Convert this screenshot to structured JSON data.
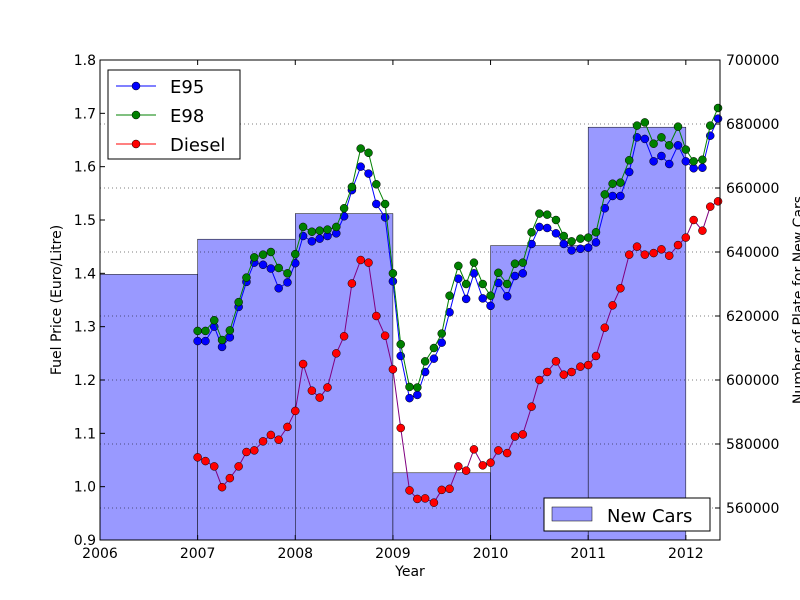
{
  "chart_data": {
    "type": "line",
    "xlabel": "Year",
    "ylabel_left": "Fuel Price (Euro/Litre)",
    "ylabel_right": "Number of Plate for New Cars",
    "xlim": [
      2006,
      2012.35
    ],
    "ylim_left": [
      0.9,
      1.8
    ],
    "ylim_right": [
      550000,
      700000
    ],
    "x_ticks": [
      "2006",
      "2007",
      "2008",
      "2009",
      "2010",
      "2011",
      "2012"
    ],
    "y_left_ticks": [
      "0.9",
      "1.0",
      "1.1",
      "1.2",
      "1.3",
      "1.4",
      "1.5",
      "1.6",
      "1.7",
      "1.8"
    ],
    "y_right_ticks": [
      "560000",
      "580000",
      "600000",
      "620000",
      "640000",
      "660000",
      "680000",
      "700000"
    ],
    "grid": "horizontal dotted (right axis)",
    "legend_left_loc": "upper-left",
    "legend_right_loc": "lower-right",
    "bar_series": {
      "name": "New Cars",
      "color": "#8080ff",
      "bars": [
        {
          "start": 2006,
          "end": 2007,
          "value": 633000
        },
        {
          "start": 2007,
          "end": 2008,
          "value": 644000
        },
        {
          "start": 2008,
          "end": 2009,
          "value": 652000
        },
        {
          "start": 2009,
          "end": 2010,
          "value": 571000
        },
        {
          "start": 2010,
          "end": 2011,
          "value": 642000
        },
        {
          "start": 2011,
          "end": 2012,
          "value": 679000
        }
      ]
    },
    "series": [
      {
        "name": "E95",
        "color": "#0000ff",
        "x": [
          2007.0,
          2007.08,
          2007.17,
          2007.25,
          2007.33,
          2007.42,
          2007.5,
          2007.58,
          2007.67,
          2007.75,
          2007.83,
          2007.92,
          2008.0,
          2008.08,
          2008.17,
          2008.25,
          2008.33,
          2008.42,
          2008.5,
          2008.58,
          2008.67,
          2008.75,
          2008.83,
          2008.92,
          2009.0,
          2009.08,
          2009.17,
          2009.25,
          2009.33,
          2009.42,
          2009.5,
          2009.58,
          2009.67,
          2009.75,
          2009.83,
          2009.92,
          2010.0,
          2010.08,
          2010.17,
          2010.25,
          2010.33,
          2010.42,
          2010.5,
          2010.58,
          2010.67,
          2010.75,
          2010.83,
          2010.92,
          2011.0,
          2011.08,
          2011.17,
          2011.25,
          2011.33,
          2011.42,
          2011.5,
          2011.58,
          2011.67,
          2011.75,
          2011.83,
          2011.92,
          2012.0,
          2012.08,
          2012.17,
          2012.25,
          2012.33
        ],
        "values": [
          1.273,
          1.273,
          1.3,
          1.262,
          1.28,
          1.337,
          1.384,
          1.42,
          1.416,
          1.409,
          1.372,
          1.383,
          1.419,
          1.47,
          1.46,
          1.465,
          1.47,
          1.475,
          1.507,
          1.556,
          1.6,
          1.587,
          1.53,
          1.505,
          1.385,
          1.245,
          1.166,
          1.172,
          1.215,
          1.24,
          1.27,
          1.327,
          1.39,
          1.352,
          1.4,
          1.353,
          1.339,
          1.382,
          1.357,
          1.395,
          1.4,
          1.455,
          1.487,
          1.485,
          1.475,
          1.455,
          1.443,
          1.446,
          1.448,
          1.458,
          1.522,
          1.545,
          1.545,
          1.59,
          1.655,
          1.652,
          1.61,
          1.62,
          1.605,
          1.64,
          1.61,
          1.597,
          1.598,
          1.658,
          1.69
        ]
      },
      {
        "name": "E98",
        "color": "#008000",
        "x": [
          2007.0,
          2007.08,
          2007.17,
          2007.25,
          2007.33,
          2007.42,
          2007.5,
          2007.58,
          2007.67,
          2007.75,
          2007.83,
          2007.92,
          2008.0,
          2008.08,
          2008.17,
          2008.25,
          2008.33,
          2008.42,
          2008.5,
          2008.58,
          2008.67,
          2008.75,
          2008.83,
          2008.92,
          2009.0,
          2009.08,
          2009.17,
          2009.25,
          2009.33,
          2009.42,
          2009.5,
          2009.58,
          2009.67,
          2009.75,
          2009.83,
          2009.92,
          2010.0,
          2010.08,
          2010.17,
          2010.25,
          2010.33,
          2010.42,
          2010.5,
          2010.58,
          2010.67,
          2010.75,
          2010.83,
          2010.92,
          2011.0,
          2011.08,
          2011.17,
          2011.25,
          2011.33,
          2011.42,
          2011.5,
          2011.58,
          2011.67,
          2011.75,
          2011.83,
          2011.92,
          2012.0,
          2012.08,
          2012.17,
          2012.25,
          2012.33
        ],
        "values": [
          1.292,
          1.292,
          1.312,
          1.275,
          1.293,
          1.346,
          1.392,
          1.43,
          1.435,
          1.44,
          1.41,
          1.4,
          1.436,
          1.487,
          1.478,
          1.48,
          1.482,
          1.487,
          1.522,
          1.562,
          1.634,
          1.626,
          1.567,
          1.53,
          1.4,
          1.267,
          1.187,
          1.186,
          1.235,
          1.26,
          1.287,
          1.358,
          1.414,
          1.38,
          1.42,
          1.38,
          1.358,
          1.401,
          1.38,
          1.418,
          1.42,
          1.477,
          1.512,
          1.51,
          1.5,
          1.47,
          1.46,
          1.465,
          1.467,
          1.477,
          1.548,
          1.568,
          1.57,
          1.612,
          1.677,
          1.683,
          1.643,
          1.655,
          1.64,
          1.675,
          1.632,
          1.61,
          1.613,
          1.677,
          1.71
        ]
      },
      {
        "name": "Diesel",
        "color": "#ff0000",
        "x": [
          2007.0,
          2007.08,
          2007.17,
          2007.25,
          2007.33,
          2007.42,
          2007.5,
          2007.58,
          2007.67,
          2007.75,
          2007.83,
          2007.92,
          2008.0,
          2008.08,
          2008.17,
          2008.25,
          2008.33,
          2008.42,
          2008.5,
          2008.58,
          2008.67,
          2008.75,
          2008.83,
          2008.92,
          2009.0,
          2009.08,
          2009.17,
          2009.25,
          2009.33,
          2009.42,
          2009.5,
          2009.58,
          2009.67,
          2009.75,
          2009.83,
          2009.92,
          2010.0,
          2010.08,
          2010.17,
          2010.25,
          2010.33,
          2010.42,
          2010.5,
          2010.58,
          2010.67,
          2010.75,
          2010.83,
          2010.92,
          2011.0,
          2011.08,
          2011.17,
          2011.25,
          2011.33,
          2011.42,
          2011.5,
          2011.58,
          2011.67,
          2011.75,
          2011.83,
          2011.92,
          2012.0,
          2012.08,
          2012.17,
          2012.25,
          2012.33
        ],
        "values": [
          1.055,
          1.048,
          1.038,
          0.999,
          1.016,
          1.038,
          1.065,
          1.068,
          1.085,
          1.097,
          1.088,
          1.112,
          1.142,
          1.23,
          1.18,
          1.167,
          1.186,
          1.25,
          1.282,
          1.381,
          1.425,
          1.42,
          1.32,
          1.283,
          1.22,
          1.11,
          0.993,
          0.977,
          0.978,
          0.97,
          0.994,
          0.996,
          1.038,
          1.03,
          1.07,
          1.04,
          1.045,
          1.068,
          1.063,
          1.094,
          1.098,
          1.15,
          1.2,
          1.215,
          1.235,
          1.21,
          1.215,
          1.225,
          1.228,
          1.245,
          1.298,
          1.34,
          1.372,
          1.435,
          1.45,
          1.435,
          1.438,
          1.445,
          1.433,
          1.453,
          1.467,
          1.5,
          1.48,
          1.525,
          1.535
        ]
      }
    ]
  }
}
